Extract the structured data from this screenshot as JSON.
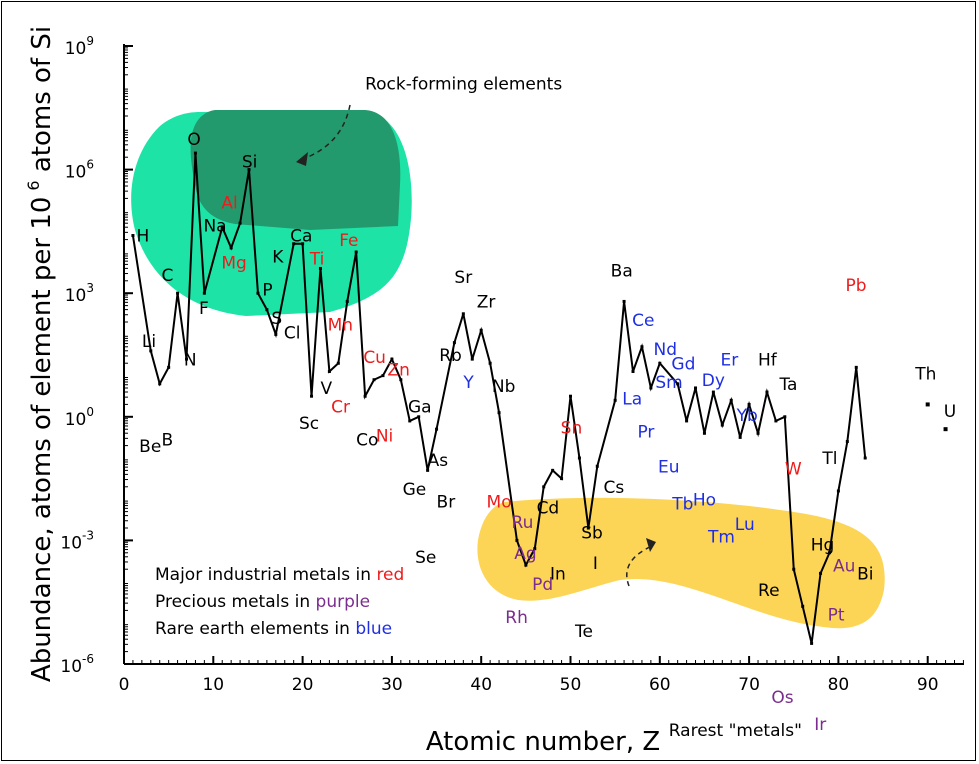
{
  "colors": {
    "red": "#ee1c1c",
    "purple": "#7b2d8e",
    "blue": "#1f2fe0",
    "black": "#000000",
    "rock_light": "#1ee3a6",
    "rock_dark": "#239a6d",
    "rare": "#fcd557"
  },
  "chart_data": {
    "type": "line",
    "title": "",
    "xlabel": "Atomic number, Z",
    "ylabel": "Abundance, atoms of element per 10",
    "ylabel_sup": "6",
    "ylabel_end": " atoms of Si",
    "xlim": [
      0,
      94
    ],
    "ylim_log10": [
      -6,
      9
    ],
    "y_scale": "log",
    "x_ticks": [
      "0",
      "10",
      "20",
      "30",
      "40",
      "50",
      "60",
      "70",
      "80",
      "90"
    ],
    "y_ticks": [
      {
        "base": "10",
        "exp": "9"
      },
      {
        "base": "10",
        "exp": "6"
      },
      {
        "base": "10",
        "exp": "3"
      },
      {
        "base": "10",
        "exp": "0"
      },
      {
        "base": "10",
        "exp": "-3"
      },
      {
        "base": "10",
        "exp": "-6"
      }
    ],
    "series": [
      {
        "name": "",
        "points": [
          {
            "z": 1,
            "log": 4.4
          },
          {
            "z": 3,
            "log": 1.6
          },
          {
            "z": 4,
            "log": 0.8
          },
          {
            "z": 5,
            "log": 1.2
          },
          {
            "z": 6,
            "log": 3.0
          },
          {
            "z": 7,
            "log": 1.4
          },
          {
            "z": 8,
            "log": 6.4
          },
          {
            "z": 9,
            "log": 3.0
          },
          {
            "z": 11,
            "log": 4.6
          },
          {
            "z": 12,
            "log": 4.1
          },
          {
            "z": 13,
            "log": 4.7
          },
          {
            "z": 14,
            "log": 6.0
          },
          {
            "z": 15,
            "log": 3.0
          },
          {
            "z": 16,
            "log": 2.6
          },
          {
            "z": 17,
            "log": 2.0
          },
          {
            "z": 19,
            "log": 4.2
          },
          {
            "z": 20,
            "log": 4.2
          },
          {
            "z": 21,
            "log": 0.5
          },
          {
            "z": 22,
            "log": 3.6
          },
          {
            "z": 23,
            "log": 1.1
          },
          {
            "z": 24,
            "log": 1.3
          },
          {
            "z": 25,
            "log": 2.8
          },
          {
            "z": 26,
            "log": 4.0
          },
          {
            "z": 27,
            "log": 0.5
          },
          {
            "z": 28,
            "log": 0.9
          },
          {
            "z": 29,
            "log": 1.0
          },
          {
            "z": 30,
            "log": 1.4
          },
          {
            "z": 31,
            "log": 0.9
          },
          {
            "z": 32,
            "log": -0.1
          },
          {
            "z": 33,
            "log": 0.0
          },
          {
            "z": 34,
            "log": -1.3
          },
          {
            "z": 35,
            "log": -0.3
          },
          {
            "z": 37,
            "log": 1.8
          },
          {
            "z": 38,
            "log": 2.5
          },
          {
            "z": 39,
            "log": 1.4
          },
          {
            "z": 40,
            "log": 2.1
          },
          {
            "z": 41,
            "log": 1.3
          },
          {
            "z": 42,
            "log": 0.1
          },
          {
            "z": 44,
            "log": -3.0
          },
          {
            "z": 45,
            "log": -3.6
          },
          {
            "z": 46,
            "log": -3.2
          },
          {
            "z": 47,
            "log": -1.7
          },
          {
            "z": 48,
            "log": -1.3
          },
          {
            "z": 49,
            "log": -1.5
          },
          {
            "z": 50,
            "log": 0.5
          },
          {
            "z": 51,
            "log": -1.0
          },
          {
            "z": 52,
            "log": -2.7
          },
          {
            "z": 53,
            "log": -1.2
          },
          {
            "z": 55,
            "log": 0.4
          },
          {
            "z": 56,
            "log": 2.8
          },
          {
            "z": 57,
            "log": 1.1
          },
          {
            "z": 58,
            "log": 1.7
          },
          {
            "z": 59,
            "log": 0.7
          },
          {
            "z": 60,
            "log": 1.3
          },
          {
            "z": 62,
            "log": 0.8
          },
          {
            "z": 63,
            "log": -0.1
          },
          {
            "z": 64,
            "log": 0.7
          },
          {
            "z": 65,
            "log": -0.4
          },
          {
            "z": 66,
            "log": 0.6
          },
          {
            "z": 67,
            "log": -0.2
          },
          {
            "z": 68,
            "log": 0.4
          },
          {
            "z": 69,
            "log": -0.5
          },
          {
            "z": 70,
            "log": 0.3
          },
          {
            "z": 71,
            "log": -0.4
          },
          {
            "z": 72,
            "log": 0.6
          },
          {
            "z": 73,
            "log": -0.1
          },
          {
            "z": 74,
            "log": 0.0
          },
          {
            "z": 75,
            "log": -3.7
          },
          {
            "z": 76,
            "log": -4.6
          },
          {
            "z": 77,
            "log": -5.5
          },
          {
            "z": 78,
            "log": -3.8
          },
          {
            "z": 79,
            "log": -3.3
          },
          {
            "z": 80,
            "log": -1.8
          },
          {
            "z": 81,
            "log": -0.6
          },
          {
            "z": 82,
            "log": 1.2
          },
          {
            "z": 83,
            "log": -1.0
          }
        ]
      }
    ],
    "isolated_points": [
      {
        "z": 90,
        "log": 0.3
      },
      {
        "z": 92,
        "log": -0.3
      }
    ],
    "element_labels": [
      {
        "text": "H",
        "z": 1.4,
        "log": 4.25,
        "color": "black"
      },
      {
        "text": "Li",
        "z": 2.0,
        "log": 1.7,
        "color": "black"
      },
      {
        "text": "Be",
        "z": 1.7,
        "log": -0.85,
        "color": "black"
      },
      {
        "text": "B",
        "z": 4.2,
        "log": -0.7,
        "color": "black"
      },
      {
        "text": "C",
        "z": 4.2,
        "log": 3.3,
        "color": "black"
      },
      {
        "text": "N",
        "z": 6.7,
        "log": 1.25,
        "color": "black"
      },
      {
        "text": "O",
        "z": 7.1,
        "log": 6.6,
        "color": "black"
      },
      {
        "text": "F",
        "z": 8.4,
        "log": 2.5,
        "color": "black"
      },
      {
        "text": "Na",
        "z": 8.9,
        "log": 4.5,
        "color": "black"
      },
      {
        "text": "Al",
        "z": 10.9,
        "log": 5.05,
        "color": "red"
      },
      {
        "text": "Mg",
        "z": 10.9,
        "log": 3.6,
        "color": "red"
      },
      {
        "text": "Si",
        "z": 13.2,
        "log": 6.05,
        "color": "black"
      },
      {
        "text": "P",
        "z": 15.5,
        "log": 2.95,
        "color": "black"
      },
      {
        "text": "S",
        "z": 16.5,
        "log": 2.25,
        "color": "black"
      },
      {
        "text": "Cl",
        "z": 17.9,
        "log": 1.9,
        "color": "black"
      },
      {
        "text": "K",
        "z": 16.6,
        "log": 3.75,
        "color": "black"
      },
      {
        "text": "Ca",
        "z": 18.6,
        "log": 4.25,
        "color": "black"
      },
      {
        "text": "Ti",
        "z": 20.8,
        "log": 3.7,
        "color": "red"
      },
      {
        "text": "Mn",
        "z": 22.8,
        "log": 2.1,
        "color": "red"
      },
      {
        "text": "Fe",
        "z": 24.1,
        "log": 4.15,
        "color": "red"
      },
      {
        "text": "Sc",
        "z": 19.6,
        "log": -0.3,
        "color": "black"
      },
      {
        "text": "V",
        "z": 22.0,
        "log": 0.55,
        "color": "black"
      },
      {
        "text": "Cr",
        "z": 23.2,
        "log": 0.1,
        "color": "red"
      },
      {
        "text": "Cu",
        "z": 26.8,
        "log": 1.3,
        "color": "red"
      },
      {
        "text": "Zn",
        "z": 29.5,
        "log": 1.0,
        "color": "red"
      },
      {
        "text": "Co",
        "z": 26.0,
        "log": -0.7,
        "color": "black"
      },
      {
        "text": "Ni",
        "z": 28.2,
        "log": -0.6,
        "color": "red"
      },
      {
        "text": "Ga",
        "z": 31.8,
        "log": 0.1,
        "color": "black"
      },
      {
        "text": "Ge",
        "z": 31.2,
        "log": -1.9,
        "color": "black"
      },
      {
        "text": "As",
        "z": 34.0,
        "log": -1.2,
        "color": "black"
      },
      {
        "text": "Se",
        "z": 32.6,
        "log": -3.55,
        "color": "black"
      },
      {
        "text": "Br",
        "z": 35.0,
        "log": -2.2,
        "color": "black"
      },
      {
        "text": "Rb",
        "z": 35.3,
        "log": 1.35,
        "color": "black"
      },
      {
        "text": "Sr",
        "z": 37.0,
        "log": 3.25,
        "color": "black"
      },
      {
        "text": "Zr",
        "z": 39.5,
        "log": 2.65,
        "color": "black"
      },
      {
        "text": "Y",
        "z": 38.0,
        "log": 0.7,
        "color": "blue"
      },
      {
        "text": "Nb",
        "z": 41.2,
        "log": 0.6,
        "color": "black"
      },
      {
        "text": "Mo",
        "z": 40.6,
        "log": -2.2,
        "color": "red"
      },
      {
        "text": "Ru",
        "z": 43.4,
        "log": -2.7,
        "color": "purple"
      },
      {
        "text": "Rh",
        "z": 42.7,
        "log": -5.0,
        "color": "purple"
      },
      {
        "text": "Pd",
        "z": 45.7,
        "log": -4.2,
        "color": "purple"
      },
      {
        "text": "Ag",
        "z": 43.7,
        "log": -3.45,
        "color": "purple"
      },
      {
        "text": "Cd",
        "z": 46.2,
        "log": -2.35,
        "color": "black"
      },
      {
        "text": "In",
        "z": 47.7,
        "log": -3.95,
        "color": "black"
      },
      {
        "text": "Sn",
        "z": 48.9,
        "log": -0.4,
        "color": "red"
      },
      {
        "text": "Sb",
        "z": 51.2,
        "log": -2.95,
        "color": "black"
      },
      {
        "text": "Te",
        "z": 50.5,
        "log": -5.35,
        "color": "black"
      },
      {
        "text": "I",
        "z": 52.5,
        "log": -3.7,
        "color": "black"
      },
      {
        "text": "Cs",
        "z": 53.7,
        "log": -1.85,
        "color": "black"
      },
      {
        "text": "Ba",
        "z": 54.5,
        "log": 3.4,
        "color": "black"
      },
      {
        "text": "La",
        "z": 55.8,
        "log": 0.3,
        "color": "blue"
      },
      {
        "text": "Ce",
        "z": 56.9,
        "log": 2.2,
        "color": "blue"
      },
      {
        "text": "Pr",
        "z": 57.5,
        "log": -0.5,
        "color": "blue"
      },
      {
        "text": "Nd",
        "z": 59.3,
        "log": 1.5,
        "color": "blue"
      },
      {
        "text": "Gd",
        "z": 61.3,
        "log": 1.15,
        "color": "blue"
      },
      {
        "text": "Sm",
        "z": 59.5,
        "log": 0.7,
        "color": "blue"
      },
      {
        "text": "Dy",
        "z": 64.7,
        "log": 0.75,
        "color": "blue"
      },
      {
        "text": "Er",
        "z": 66.8,
        "log": 1.25,
        "color": "blue"
      },
      {
        "text": "Eu",
        "z": 59.8,
        "log": -1.35,
        "color": "blue"
      },
      {
        "text": "Tb",
        "z": 61.4,
        "log": -2.25,
        "color": "blue"
      },
      {
        "text": "Ho",
        "z": 63.7,
        "log": -2.15,
        "color": "blue"
      },
      {
        "text": "Yb",
        "z": 68.6,
        "log": -0.1,
        "color": "blue"
      },
      {
        "text": "Tm",
        "z": 65.4,
        "log": -3.05,
        "color": "blue"
      },
      {
        "text": "Lu",
        "z": 68.4,
        "log": -2.75,
        "color": "blue"
      },
      {
        "text": "Hf",
        "z": 71.0,
        "log": 1.25,
        "color": "black"
      },
      {
        "text": "Ta",
        "z": 73.4,
        "log": 0.65,
        "color": "black"
      },
      {
        "text": "W",
        "z": 74.0,
        "log": -1.4,
        "color": "red"
      },
      {
        "text": "Re",
        "z": 71.0,
        "log": -4.35,
        "color": "black"
      },
      {
        "text": "Os",
        "z": 72.5,
        "log": -6.95,
        "color": "purple"
      },
      {
        "text": "Ir",
        "z": 77.3,
        "log": -7.6,
        "color": "purple"
      },
      {
        "text": "Pt",
        "z": 78.8,
        "log": -4.95,
        "color": "purple"
      },
      {
        "text": "Au",
        "z": 79.4,
        "log": -3.75,
        "color": "purple"
      },
      {
        "text": "Hg",
        "z": 76.9,
        "log": -3.25,
        "color": "black"
      },
      {
        "text": "Tl",
        "z": 78.2,
        "log": -1.15,
        "color": "black"
      },
      {
        "text": "Pb",
        "z": 80.8,
        "log": 3.05,
        "color": "red"
      },
      {
        "text": "Bi",
        "z": 82.1,
        "log": -3.95,
        "color": "black"
      },
      {
        "text": "Th",
        "z": 88.6,
        "log": 0.9,
        "color": "black"
      },
      {
        "text": "U",
        "z": 91.8,
        "log": 0.0,
        "color": "black"
      }
    ],
    "annotations": [
      {
        "text": "Rock-forming elements",
        "z": 27.0,
        "log": 7.95,
        "color": "black"
      },
      {
        "text": "Rarest \"metals\"",
        "z": 61.0,
        "log": -7.75,
        "color": "black"
      }
    ],
    "legend": {
      "position": "bottom-left",
      "lines": [
        {
          "prefix": "Major industrial metals in ",
          "word": "red",
          "color": "red"
        },
        {
          "prefix": "Precious metals in ",
          "word": "purple",
          "color": "purple"
        },
        {
          "prefix": "Rare earth elements in ",
          "word": "blue",
          "color": "blue"
        }
      ]
    }
  }
}
